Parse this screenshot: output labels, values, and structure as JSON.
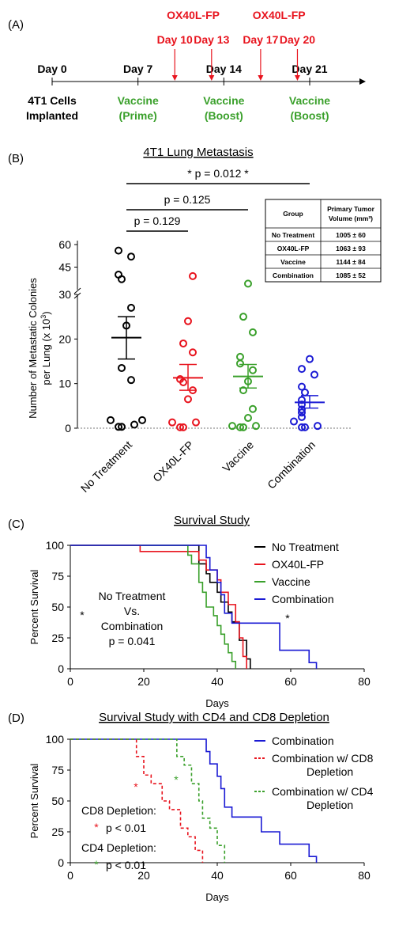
{
  "panelA": {
    "label": "(A)",
    "days": [
      {
        "text": "Day 0",
        "day": 0,
        "pos": "below"
      },
      {
        "text": "Day 7",
        "day": 7,
        "pos": "below"
      },
      {
        "text": "Day 14",
        "day": 14,
        "pos": "below"
      },
      {
        "text": "Day 21",
        "day": 21,
        "pos": "below"
      }
    ],
    "ox40l_days": [
      {
        "text": "Day 10",
        "day": 10
      },
      {
        "text": "Day 13",
        "day": 13
      },
      {
        "text": "Day 17",
        "day": 17
      },
      {
        "text": "Day 20",
        "day": 20
      }
    ],
    "ox40l_label": "OX40L-FP",
    "implanted_line1": "4T1 Cells",
    "implanted_line2": "Implanted",
    "vaccine": [
      {
        "line1": "Vaccine",
        "line2": "(Prime)",
        "day": 7
      },
      {
        "line1": "Vaccine",
        "line2": "(Boost)",
        "day": 14
      },
      {
        "line1": "Vaccine",
        "line2": "(Boost)",
        "day": 21
      }
    ],
    "colors": {
      "red": "#e8141e",
      "green": "#3aa02b"
    }
  },
  "panelB": {
    "label": "(B)",
    "title": "4T1 Lung Metastasis",
    "ylabel_line1": "Number of Metastatic Colonies",
    "ylabel_line2": "per Lung (x 10",
    "ylabel_sup": "3",
    "ylabel_end": ")",
    "pvals": [
      {
        "text": "*  p = 0.012  *",
        "from": 0,
        "to": 3
      },
      {
        "text": "p = 0.125",
        "from": 0,
        "to": 2
      },
      {
        "text": "p = 0.129",
        "from": 0,
        "to": 1
      }
    ],
    "table": {
      "headers": [
        "Group",
        "Primary Tumor Volume (mm³)"
      ],
      "rows": [
        [
          "No Treatment",
          "1005 ± 60"
        ],
        [
          "OX40L-FP",
          "1063 ± 93"
        ],
        [
          "Vaccine",
          "1144 ± 84"
        ],
        [
          "Combination",
          "1085 ± 52"
        ]
      ]
    }
  },
  "chart_data": [
    {
      "type": "scatter",
      "panel": "B",
      "title": "4T1 Lung Metastasis",
      "ylabel": "Number of Metastatic Colonies per Lung (x 10^3)",
      "categories": [
        "No Treatment",
        "OX40L-FP",
        "Vaccine",
        "Combination"
      ],
      "yticks": [
        "0",
        "10",
        "20",
        "30",
        "45",
        "60"
      ],
      "y_axis_break": [
        30,
        30
      ],
      "series": [
        {
          "name": "No Treatment",
          "color": "#000000",
          "mean": 20.3,
          "sem_low": 15.5,
          "sem_high": 25.0,
          "values": [
            1.8,
            0.8,
            0.3,
            0.3,
            1.8,
            10.8,
            13.5,
            23,
            27,
            37,
            40,
            52,
            56
          ]
        },
        {
          "name": "OX40L-FP",
          "color": "#e8141e",
          "mean": 11.3,
          "sem_low": 8.5,
          "sem_high": 14.3,
          "values": [
            0.2,
            0.2,
            1.3,
            1.3,
            6.5,
            8.5,
            10.3,
            11,
            17,
            19,
            24,
            39
          ]
        },
        {
          "name": "Vaccine",
          "color": "#3aa02b",
          "mean": 11.6,
          "sem_low": 9.0,
          "sem_high": 14.3,
          "values": [
            0.2,
            0.2,
            0.5,
            0.5,
            2.3,
            4.3,
            8.5,
            10.5,
            13,
            14.5,
            16,
            21.5,
            25,
            34
          ]
        },
        {
          "name": "Combination",
          "color": "#1a1ad4",
          "mean": 5.8,
          "sem_low": 4.5,
          "sem_high": 7.3,
          "values": [
            0.2,
            0.2,
            0.5,
            1.5,
            2.5,
            3.5,
            4.2,
            5.3,
            6.3,
            8.0,
            9.3,
            12,
            13.3,
            15.5
          ]
        }
      ]
    },
    {
      "type": "line",
      "panel": "C",
      "title": "Survival Study",
      "xlabel": "Days",
      "ylabel": "Percent Survival",
      "xlim": [
        0,
        80
      ],
      "ylim": [
        0,
        100
      ],
      "xticks": [
        "0",
        "20",
        "40",
        "60",
        "80"
      ],
      "yticks": [
        "0",
        "25",
        "50",
        "75",
        "100"
      ],
      "series": [
        {
          "name": "No Treatment",
          "color": "#000000",
          "x": [
            0,
            33,
            35,
            37,
            38,
            40,
            41,
            43,
            44,
            46,
            48,
            49
          ],
          "y": [
            100,
            100,
            85,
            77,
            70,
            62,
            54,
            46,
            38,
            23,
            8,
            0
          ]
        },
        {
          "name": "OX40L-FP",
          "color": "#e8141e",
          "x": [
            0,
            19,
            33,
            35,
            37,
            40,
            41,
            43,
            45,
            46,
            47,
            48
          ],
          "y": [
            100,
            95,
            95,
            88,
            80,
            72,
            62,
            52,
            38,
            25,
            10,
            0
          ]
        },
        {
          "name": "Vaccine",
          "color": "#3aa02b",
          "x": [
            0,
            31,
            32,
            33,
            35,
            36,
            37,
            39,
            40,
            41,
            42,
            43,
            44,
            45
          ],
          "y": [
            100,
            100,
            92,
            85,
            70,
            62,
            50,
            43,
            35,
            28,
            20,
            13,
            6,
            0
          ]
        },
        {
          "name": "Combination",
          "color": "#1a1ad4",
          "x": [
            0,
            33,
            37,
            38,
            40,
            41,
            42,
            44,
            48,
            57,
            65,
            67
          ],
          "y": [
            100,
            100,
            90,
            80,
            70,
            60,
            45,
            37,
            37,
            15,
            5,
            0
          ]
        }
      ],
      "annotation": {
        "line1": "No Treatment",
        "line2": "Vs.",
        "line3": "Combination",
        "line4": "p = 0.041",
        "star": "*"
      }
    },
    {
      "type": "line",
      "panel": "D",
      "title": "Survival Study with CD4 and CD8 Depletion",
      "xlabel": "Days",
      "ylabel": "Percent Survival",
      "xlim": [
        0,
        80
      ],
      "ylim": [
        0,
        100
      ],
      "xticks": [
        "0",
        "20",
        "40",
        "60",
        "80"
      ],
      "yticks": [
        "0",
        "25",
        "50",
        "75",
        "100"
      ],
      "series": [
        {
          "name": "Combination",
          "color": "#1a1ad4",
          "dash": false,
          "x": [
            0,
            33,
            37,
            38,
            40,
            41,
            42,
            44,
            48,
            52,
            57,
            65,
            67
          ],
          "y": [
            100,
            100,
            90,
            80,
            70,
            60,
            45,
            37,
            37,
            25,
            15,
            5,
            0
          ]
        },
        {
          "name": "Combination w/ CD8 Depletion",
          "color": "#e8141e",
          "dash": true,
          "x": [
            0,
            18,
            20,
            22,
            25,
            27,
            30,
            32,
            34,
            36
          ],
          "y": [
            100,
            86,
            71,
            64,
            50,
            43,
            28,
            21,
            10,
            0
          ]
        },
        {
          "name": "Combination w/ CD4 Depletion",
          "color": "#3aa02b",
          "dash": true,
          "x": [
            0,
            29,
            31,
            33,
            35,
            36,
            38,
            40,
            42
          ],
          "y": [
            100,
            86,
            79,
            64,
            50,
            36,
            28,
            14,
            0
          ]
        }
      ],
      "legend_lines": [
        [
          "Combination"
        ],
        [
          "Combination w/ CD8",
          "Depletion"
        ],
        [
          "Combination w/ CD4",
          "Depletion"
        ]
      ],
      "annotation": {
        "cd8_label": "CD8 Depletion:",
        "cd8_p": "p < 0.01",
        "cd4_label": "CD4 Depletion:",
        "cd4_p": "p < 0.01",
        "star": "*"
      }
    }
  ],
  "panelC_label": "(C)",
  "panelD_label": "(D)"
}
